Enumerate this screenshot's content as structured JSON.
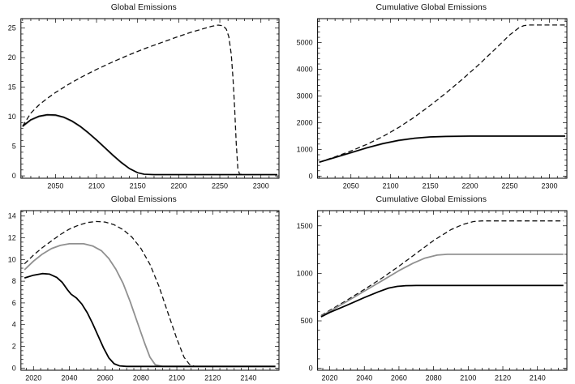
{
  "page": {
    "background": "#ffffff"
  },
  "chart_data": [
    {
      "type": "line",
      "title": "Global Emissions",
      "xlabel": "",
      "ylabel": "",
      "xlim": [
        2008,
        2322
      ],
      "ylim": [
        -0.4,
        26.6
      ],
      "xticks": [
        2050,
        2100,
        2150,
        2200,
        2250,
        2300
      ],
      "yticks": [
        0,
        5,
        10,
        15,
        20,
        25
      ],
      "grid": false,
      "legend": "none",
      "series": [
        {
          "name": "baseline-dashed",
          "style": "dashed",
          "color": "#111111",
          "width": 1.3,
          "points": [
            [
              2010,
              8.4
            ],
            [
              2020,
              10.6
            ],
            [
              2030,
              12.0
            ],
            [
              2040,
              13.1
            ],
            [
              2050,
              14.1
            ],
            [
              2065,
              15.4
            ],
            [
              2080,
              16.6
            ],
            [
              2100,
              18.0
            ],
            [
              2120,
              19.3
            ],
            [
              2140,
              20.5
            ],
            [
              2160,
              21.6
            ],
            [
              2180,
              22.6
            ],
            [
              2200,
              23.6
            ],
            [
              2215,
              24.3
            ],
            [
              2230,
              24.9
            ],
            [
              2240,
              25.3
            ],
            [
              2248,
              25.5
            ],
            [
              2254,
              25.4
            ],
            [
              2258,
              24.8
            ],
            [
              2261,
              23.5
            ],
            [
              2264,
              20.5
            ],
            [
              2266,
              16.5
            ],
            [
              2268,
              11.5
            ],
            [
              2270,
              5.5
            ],
            [
              2272,
              1.2
            ],
            [
              2274,
              0.3
            ],
            [
              2280,
              0.2
            ],
            [
              2320,
              0.2
            ]
          ]
        },
        {
          "name": "scenario-gray",
          "style": "solid",
          "color": "#909090",
          "width": 1.6,
          "points": [
            [
              2010,
              8.3
            ],
            [
              2020,
              9.4
            ],
            [
              2030,
              10.0
            ],
            [
              2040,
              10.25
            ],
            [
              2050,
              10.2
            ],
            [
              2060,
              9.85
            ],
            [
              2070,
              9.2
            ],
            [
              2080,
              8.3
            ],
            [
              2090,
              7.2
            ],
            [
              2100,
              6.0
            ],
            [
              2110,
              4.7
            ],
            [
              2120,
              3.4
            ],
            [
              2130,
              2.2
            ],
            [
              2140,
              1.2
            ],
            [
              2150,
              0.5
            ],
            [
              2158,
              0.25
            ],
            [
              2170,
              0.2
            ],
            [
              2320,
              0.2
            ]
          ]
        },
        {
          "name": "scenario-black",
          "style": "solid",
          "color": "#000000",
          "width": 1.6,
          "points": [
            [
              2010,
              8.4
            ],
            [
              2020,
              9.5
            ],
            [
              2030,
              10.1
            ],
            [
              2040,
              10.35
            ],
            [
              2050,
              10.3
            ],
            [
              2060,
              9.95
            ],
            [
              2070,
              9.3
            ],
            [
              2080,
              8.4
            ],
            [
              2090,
              7.3
            ],
            [
              2100,
              6.1
            ],
            [
              2110,
              4.8
            ],
            [
              2120,
              3.5
            ],
            [
              2130,
              2.3
            ],
            [
              2140,
              1.25
            ],
            [
              2150,
              0.55
            ],
            [
              2158,
              0.28
            ],
            [
              2170,
              0.2
            ],
            [
              2320,
              0.2
            ]
          ]
        }
      ]
    },
    {
      "type": "line",
      "title": "Cumulative Global Emissions",
      "xlabel": "",
      "ylabel": "",
      "xlim": [
        2008,
        2322
      ],
      "ylim": [
        -80,
        5900
      ],
      "xticks": [
        2050,
        2100,
        2150,
        2200,
        2250,
        2300
      ],
      "yticks": [
        0,
        1000,
        2000,
        3000,
        4000,
        5000
      ],
      "grid": false,
      "legend": "none",
      "series": [
        {
          "name": "baseline-dashed",
          "style": "dashed",
          "color": "#111111",
          "width": 1.3,
          "points": [
            [
              2010,
              520
            ],
            [
              2030,
              720
            ],
            [
              2050,
              940
            ],
            [
              2070,
              1190
            ],
            [
              2090,
              1480
            ],
            [
              2110,
              1820
            ],
            [
              2130,
              2210
            ],
            [
              2150,
              2650
            ],
            [
              2170,
              3120
            ],
            [
              2190,
              3620
            ],
            [
              2210,
              4150
            ],
            [
              2230,
              4710
            ],
            [
              2250,
              5290
            ],
            [
              2262,
              5570
            ],
            [
              2268,
              5640
            ],
            [
              2275,
              5660
            ],
            [
              2320,
              5660
            ]
          ]
        },
        {
          "name": "scenario-gray",
          "style": "solid",
          "color": "#909090",
          "width": 1.6,
          "points": [
            [
              2010,
              515
            ],
            [
              2030,
              690
            ],
            [
              2050,
              868
            ],
            [
              2070,
              1045
            ],
            [
              2090,
              1205
            ],
            [
              2110,
              1325
            ],
            [
              2130,
              1408
            ],
            [
              2150,
              1458
            ],
            [
              2170,
              1478
            ],
            [
              2200,
              1488
            ],
            [
              2320,
              1488
            ]
          ]
        },
        {
          "name": "scenario-black",
          "style": "solid",
          "color": "#000000",
          "width": 1.6,
          "points": [
            [
              2010,
              520
            ],
            [
              2030,
              700
            ],
            [
              2050,
              880
            ],
            [
              2070,
              1060
            ],
            [
              2090,
              1220
            ],
            [
              2110,
              1340
            ],
            [
              2130,
              1420
            ],
            [
              2150,
              1470
            ],
            [
              2170,
              1490
            ],
            [
              2200,
              1500
            ],
            [
              2320,
              1500
            ]
          ]
        }
      ]
    },
    {
      "type": "line",
      "title": "Global Emissions",
      "xlabel": "",
      "ylabel": "",
      "xlim": [
        2013,
        2157
      ],
      "ylim": [
        -0.2,
        14.5
      ],
      "xticks": [
        2020,
        2040,
        2060,
        2080,
        2100,
        2120,
        2140
      ],
      "yticks": [
        0,
        2,
        4,
        6,
        8,
        10,
        12,
        14
      ],
      "grid": false,
      "legend": "none",
      "series": [
        {
          "name": "baseline-dashed",
          "style": "dashed",
          "color": "#111111",
          "width": 1.3,
          "points": [
            [
              2015,
              9.6
            ],
            [
              2020,
              10.4
            ],
            [
              2025,
              11.1
            ],
            [
              2030,
              11.7
            ],
            [
              2035,
              12.3
            ],
            [
              2040,
              12.8
            ],
            [
              2045,
              13.15
            ],
            [
              2050,
              13.4
            ],
            [
              2055,
              13.5
            ],
            [
              2060,
              13.45
            ],
            [
              2065,
              13.2
            ],
            [
              2070,
              12.75
            ],
            [
              2075,
              12.05
            ],
            [
              2080,
              11.0
            ],
            [
              2085,
              9.55
            ],
            [
              2090,
              7.55
            ],
            [
              2095,
              5.1
            ],
            [
              2100,
              2.7
            ],
            [
              2104,
              1.0
            ],
            [
              2107,
              0.35
            ],
            [
              2110,
              0.15
            ],
            [
              2155,
              0.15
            ]
          ]
        },
        {
          "name": "scenario-gray",
          "style": "solid",
          "color": "#909090",
          "width": 1.8,
          "points": [
            [
              2015,
              9.05
            ],
            [
              2020,
              9.85
            ],
            [
              2025,
              10.5
            ],
            [
              2030,
              11.0
            ],
            [
              2035,
              11.3
            ],
            [
              2040,
              11.45
            ],
            [
              2048,
              11.45
            ],
            [
              2053,
              11.25
            ],
            [
              2058,
              10.8
            ],
            [
              2062,
              10.1
            ],
            [
              2066,
              9.1
            ],
            [
              2070,
              7.8
            ],
            [
              2074,
              6.1
            ],
            [
              2078,
              4.2
            ],
            [
              2082,
              2.3
            ],
            [
              2085,
              1.0
            ],
            [
              2088,
              0.3
            ],
            [
              2092,
              0.15
            ],
            [
              2155,
              0.15
            ]
          ]
        },
        {
          "name": "scenario-black",
          "style": "solid",
          "color": "#000000",
          "width": 1.8,
          "points": [
            [
              2015,
              8.3
            ],
            [
              2020,
              8.55
            ],
            [
              2025,
              8.7
            ],
            [
              2029,
              8.65
            ],
            [
              2033,
              8.35
            ],
            [
              2036,
              7.9
            ],
            [
              2039,
              7.2
            ],
            [
              2041,
              6.8
            ],
            [
              2044,
              6.45
            ],
            [
              2047,
              5.9
            ],
            [
              2050,
              5.1
            ],
            [
              2053,
              4.1
            ],
            [
              2056,
              3.0
            ],
            [
              2059,
              1.9
            ],
            [
              2062,
              0.95
            ],
            [
              2065,
              0.4
            ],
            [
              2068,
              0.2
            ],
            [
              2072,
              0.15
            ],
            [
              2155,
              0.15
            ]
          ]
        }
      ]
    },
    {
      "type": "line",
      "title": "Cumulative Global Emissions",
      "xlabel": "",
      "ylabel": "",
      "xlim": [
        2013,
        2157
      ],
      "ylim": [
        -20,
        1660
      ],
      "xticks": [
        2020,
        2040,
        2060,
        2080,
        2100,
        2120,
        2140
      ],
      "yticks": [
        0,
        500,
        1000,
        1500
      ],
      "grid": false,
      "legend": "none",
      "series": [
        {
          "name": "baseline-dashed",
          "style": "dashed",
          "color": "#111111",
          "width": 1.3,
          "points": [
            [
              2015,
              555
            ],
            [
              2020,
              610
            ],
            [
              2030,
              718
            ],
            [
              2040,
              830
            ],
            [
              2050,
              948
            ],
            [
              2060,
              1075
            ],
            [
              2070,
              1210
            ],
            [
              2080,
              1345
            ],
            [
              2090,
              1460
            ],
            [
              2097,
              1515
            ],
            [
              2103,
              1545
            ],
            [
              2108,
              1552
            ],
            [
              2155,
              1552
            ]
          ]
        },
        {
          "name": "scenario-gray",
          "style": "solid",
          "color": "#909090",
          "width": 1.8,
          "points": [
            [
              2015,
              548
            ],
            [
              2020,
              600
            ],
            [
              2030,
              705
            ],
            [
              2040,
              812
            ],
            [
              2050,
              920
            ],
            [
              2060,
              1028
            ],
            [
              2068,
              1105
            ],
            [
              2075,
              1160
            ],
            [
              2082,
              1192
            ],
            [
              2088,
              1200
            ],
            [
              2155,
              1200
            ]
          ]
        },
        {
          "name": "scenario-black",
          "style": "solid",
          "color": "#000000",
          "width": 1.8,
          "points": [
            [
              2015,
              542
            ],
            [
              2020,
              588
            ],
            [
              2030,
              665
            ],
            [
              2040,
              745
            ],
            [
              2048,
              805
            ],
            [
              2054,
              845
            ],
            [
              2059,
              863
            ],
            [
              2064,
              870
            ],
            [
              2070,
              872
            ],
            [
              2155,
              872
            ]
          ]
        }
      ]
    }
  ]
}
